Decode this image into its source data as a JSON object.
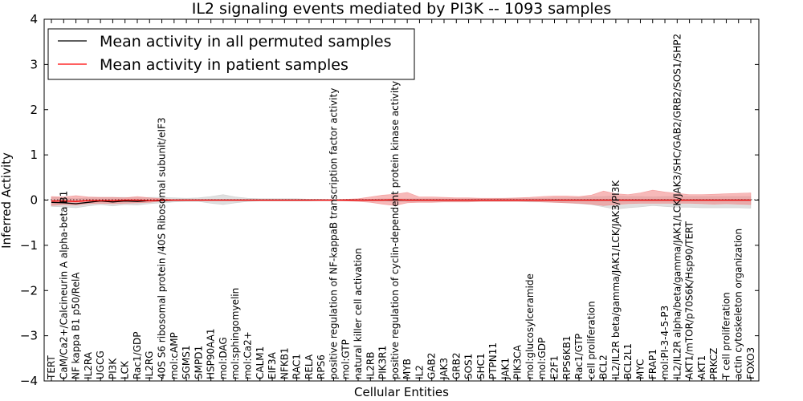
{
  "chart_data": {
    "type": "line",
    "title": "IL2 signaling events mediated by PI3K -- 1093 samples",
    "xlabel": "Cellular Entities",
    "ylabel": "Inferred Activity",
    "ylim": [
      -4,
      4
    ],
    "yticks": [
      -4,
      -3,
      -2,
      -1,
      0,
      1,
      2,
      3,
      4
    ],
    "ytick_labels": [
      "−4",
      "−3",
      "−2",
      "−1",
      "0",
      "1",
      "2",
      "3",
      "4"
    ],
    "legend": {
      "position": "top-left",
      "entries": [
        {
          "label": "Mean activity in all permuted samples",
          "color": "#000000"
        },
        {
          "label": "Mean activity in patient samples",
          "color": "#ff0000"
        }
      ]
    },
    "categories": [
      "TERT",
      "CaM/Ca2+/Calcineurin A alpha-beta B1",
      "NF kappa B1 p50/RelA",
      "IL2RA",
      "UGCG",
      "PI3K",
      "LCK",
      "Rac1/GDP",
      "IL2RG",
      "40S S6 ribosomal protein /40S Ribosomal subunit/eIF3",
      "mol:cAMP",
      "SGMS1",
      "SMPD1",
      "HSP90AA1",
      "mol:DAG",
      "mol:sphingomyelin",
      "mol:Ca2+",
      "CALM1",
      "EIF3A",
      "NFKB1",
      "RAC1",
      "RELA",
      "RPS6",
      "positive regulation of NF-kappaB transcription factor activity",
      "mol:GTP",
      "natural killer cell activation",
      "IL2RB",
      "PIK3R1",
      "positive regulation of cyclin-dependent protein kinase activity",
      "MYB",
      "IL2",
      "GAB2",
      "JAK3",
      "GRB2",
      "SOS1",
      "SHC1",
      "PTPN11",
      "JAK1",
      "PIK3CA",
      "mol:glucosylceramide",
      "mol:GDP",
      "E2F1",
      "RPS6KB1",
      "Rac1/GTP",
      "cell proliferation",
      "BCL2",
      "IL2/IL2R beta/gamma/JAK1/LCK/JAK3/PI3K",
      "BCL2L1",
      "MYC",
      "FRAP1",
      "mol:PI-3-4-5-P3",
      "IL2/IL2R alpha/beta/gamma/JAK1/LCK/JAK3/SHC/GAB2/GRB2/SOS1/SHP2",
      "AKT1/mTOR/p70S6K/Hsp90/TERT",
      "AKT1",
      "PRKCZ",
      "T cell proliferation",
      "actin cytoskeleton organization",
      "FOXO3"
    ],
    "series": [
      {
        "name": "Mean activity in all permuted samples",
        "color": "#000000",
        "values": [
          -0.05,
          -0.06,
          -0.08,
          -0.05,
          -0.02,
          -0.04,
          -0.02,
          -0.03,
          -0.01,
          -0.01,
          0,
          0,
          0,
          0,
          0,
          0,
          0,
          0,
          0,
          0,
          0,
          0,
          0,
          0,
          0,
          0,
          0,
          0,
          0,
          0,
          0,
          0,
          0,
          0,
          0,
          0,
          0,
          0,
          0,
          0,
          0,
          0,
          0,
          0,
          0,
          0,
          0,
          0,
          0,
          0,
          0,
          0,
          0,
          0,
          0,
          0,
          0,
          0
        ],
        "band_lower": [
          -0.14,
          -0.15,
          -0.17,
          -0.13,
          -0.1,
          -0.13,
          -0.1,
          -0.11,
          -0.08,
          -0.06,
          -0.04,
          -0.03,
          -0.03,
          -0.07,
          -0.1,
          -0.06,
          -0.03,
          -0.02,
          -0.02,
          -0.02,
          -0.02,
          -0.02,
          -0.01,
          -0.01,
          -0.01,
          -0.01,
          -0.02,
          -0.02,
          -0.03,
          -0.03,
          -0.03,
          -0.03,
          -0.03,
          -0.03,
          -0.03,
          -0.03,
          -0.03,
          -0.03,
          -0.03,
          -0.04,
          -0.04,
          -0.05,
          -0.06,
          -0.08,
          -0.1,
          -0.15,
          -0.2,
          -0.17,
          -0.15,
          -0.12,
          -0.14,
          -0.16,
          -0.16,
          -0.17,
          -0.17,
          -0.17,
          -0.17,
          -0.18
        ],
        "band_upper": [
          0.06,
          0.05,
          0.03,
          0.05,
          0.06,
          0.06,
          0.06,
          0.05,
          0.06,
          0.06,
          0.05,
          0.04,
          0.05,
          0.08,
          0.12,
          0.07,
          0.04,
          0.03,
          0.03,
          0.03,
          0.03,
          0.02,
          0.02,
          0.01,
          0.01,
          0.02,
          0.02,
          0.03,
          0.03,
          0.03,
          0.03,
          0.03,
          0.03,
          0.03,
          0.03,
          0.03,
          0.03,
          0.04,
          0.04,
          0.04,
          0.04,
          0.05,
          0.05,
          0.06,
          0.07,
          0.08,
          0.09,
          0.08,
          0.08,
          0.07,
          0.08,
          0.08,
          0.08,
          0.08,
          0.08,
          0.08,
          0.08,
          0.08
        ]
      },
      {
        "name": "Mean activity in patient samples",
        "color": "#ff0000",
        "values": [
          -0.02,
          -0.02,
          -0.03,
          -0.01,
          -0.01,
          -0.01,
          0,
          0,
          -0.01,
          0,
          0,
          0,
          0,
          0,
          0,
          0,
          0,
          0,
          0,
          0,
          0,
          0,
          0,
          0,
          0,
          0,
          0,
          0,
          0.01,
          0,
          0,
          0,
          0,
          0,
          0,
          0,
          0,
          0,
          0,
          0,
          0,
          0,
          0,
          0,
          0,
          0,
          0,
          0,
          0,
          0,
          0,
          0,
          0,
          0,
          0,
          0,
          0,
          0
        ],
        "band_lower": [
          -0.12,
          -0.1,
          -0.11,
          -0.08,
          -0.07,
          -0.08,
          -0.07,
          -0.06,
          -0.05,
          -0.02,
          -0.01,
          -0.01,
          -0.01,
          -0.01,
          -0.01,
          -0.01,
          -0.01,
          -0.01,
          -0.01,
          -0.01,
          -0.01,
          -0.01,
          -0.01,
          -0.01,
          -0.02,
          -0.03,
          -0.05,
          -0.09,
          -0.12,
          -0.06,
          -0.05,
          -0.05,
          -0.04,
          -0.04,
          -0.04,
          -0.03,
          -0.03,
          -0.03,
          -0.03,
          -0.03,
          -0.04,
          -0.05,
          -0.06,
          -0.07,
          -0.09,
          -0.12,
          -0.1,
          -0.08,
          -0.07,
          -0.07,
          -0.07,
          -0.07,
          -0.07,
          -0.08,
          -0.09,
          -0.08,
          -0.09,
          -0.1
        ],
        "band_upper": [
          0.08,
          0.07,
          0.1,
          0.07,
          0.06,
          0.06,
          0.05,
          0.08,
          0.05,
          0.03,
          0.01,
          0.01,
          0.01,
          0.01,
          0.01,
          0.01,
          0.01,
          0.01,
          0.01,
          0.01,
          0.01,
          0.01,
          0.01,
          0.01,
          0.02,
          0.03,
          0.07,
          0.11,
          0.13,
          0.17,
          0.07,
          0.07,
          0.06,
          0.05,
          0.05,
          0.04,
          0.04,
          0.04,
          0.05,
          0.06,
          0.08,
          0.09,
          0.09,
          0.08,
          0.11,
          0.2,
          0.14,
          0.12,
          0.16,
          0.22,
          0.18,
          0.15,
          0.12,
          0.12,
          0.13,
          0.14,
          0.15,
          0.16
        ]
      }
    ]
  }
}
